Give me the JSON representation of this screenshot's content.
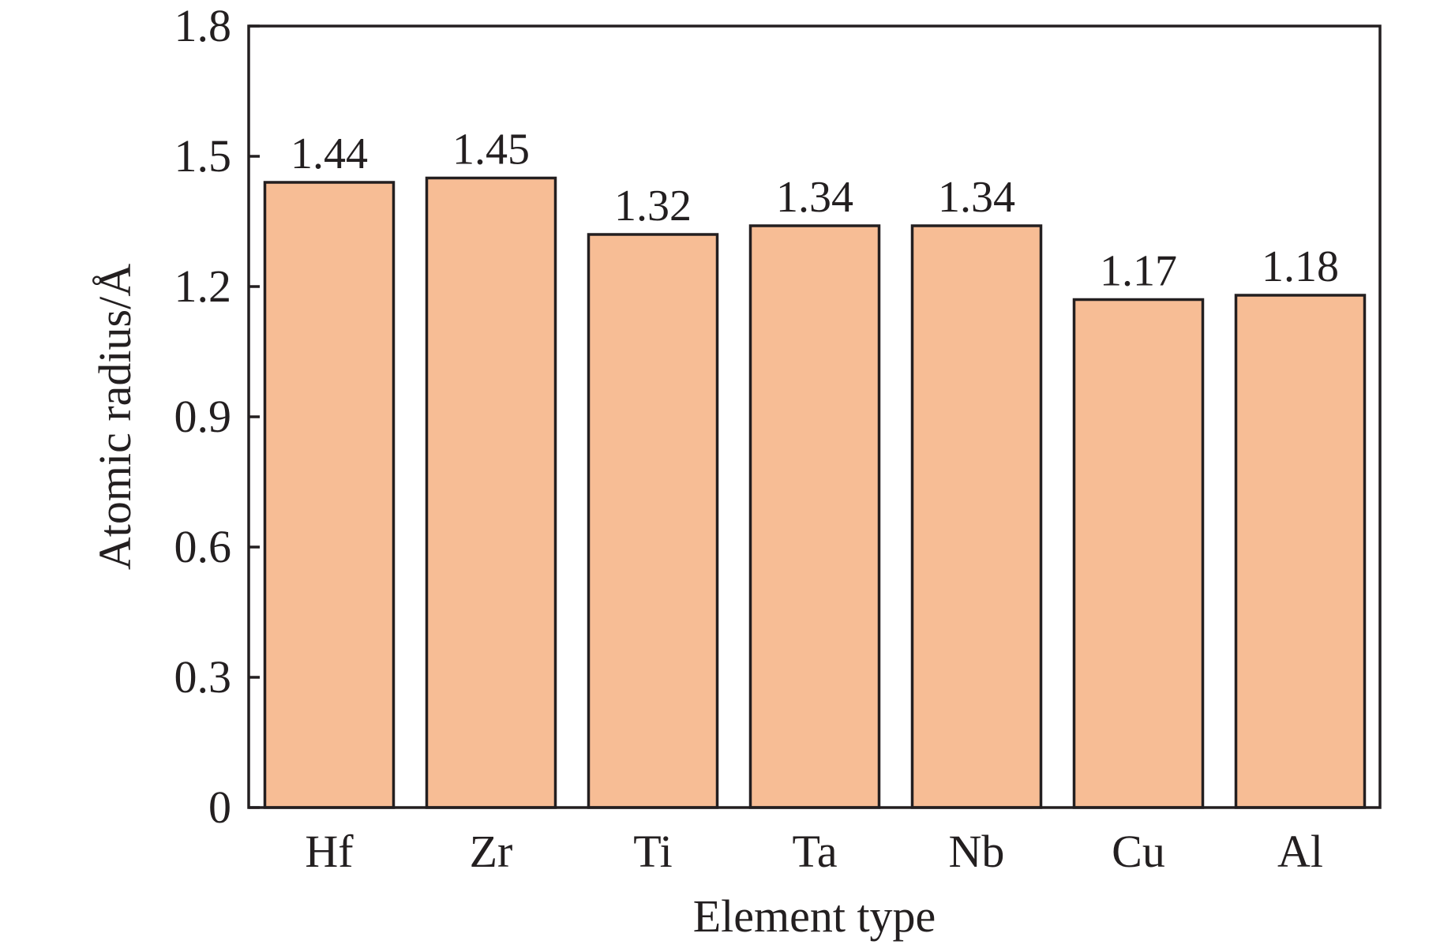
{
  "chart_data": {
    "type": "bar",
    "title": "",
    "xlabel": "Element type",
    "ylabel": "Atomic radius/Å",
    "categories": [
      "Hf",
      "Zr",
      "Ti",
      "Ta",
      "Nb",
      "Cu",
      "Al"
    ],
    "values": [
      1.44,
      1.45,
      1.32,
      1.34,
      1.34,
      1.17,
      1.18
    ],
    "data_labels": [
      "1.44",
      "1.45",
      "1.32",
      "1.34",
      "1.34",
      "1.17",
      "1.18"
    ],
    "ylim": [
      0,
      1.8
    ],
    "yticks": [
      0,
      0.3,
      0.6,
      0.9,
      1.2,
      1.5,
      1.8
    ],
    "ytick_labels": [
      "0",
      "0.3",
      "0.6",
      "0.9",
      "1.2",
      "1.5",
      "1.8"
    ],
    "grid": false,
    "legend": "none",
    "bar_color": "#f7bd95",
    "edge_color": "#231f20"
  }
}
